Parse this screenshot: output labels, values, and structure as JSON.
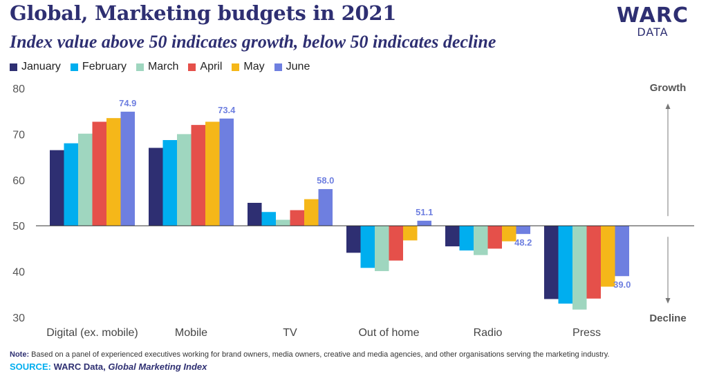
{
  "header": {
    "title": "Global, Marketing budgets in 2021",
    "subtitle": "Index value above 50 indicates growth, below 50 indicates decline",
    "logo_main": "WARC",
    "logo_sub": "DATA"
  },
  "footer": {
    "note_label": "Note:",
    "note_text": "Based on a panel of experienced executives working for brand owners, media owners, creative and media agencies, and other organisations serving the marketing industry.",
    "source_label": "SOURCE:",
    "source_org": "WARC Data,",
    "source_title": "Global Marketing Index"
  },
  "chart_data": {
    "type": "bar",
    "title": "Global, Marketing budgets in 2021",
    "baseline": 50,
    "ylim": [
      30,
      80
    ],
    "yticks": [
      30,
      40,
      50,
      60,
      70,
      80
    ],
    "categories": [
      "Digital (ex. mobile)",
      "Mobile",
      "TV",
      "Out of home",
      "Radio",
      "Press"
    ],
    "series": [
      {
        "name": "January",
        "color": "#2e2f72",
        "values": [
          66.5,
          67.0,
          55.0,
          44.1,
          45.5,
          34.0
        ]
      },
      {
        "name": "February",
        "color": "#00aeef",
        "values": [
          68.0,
          68.7,
          53.0,
          40.8,
          44.6,
          33.0
        ]
      },
      {
        "name": "March",
        "color": "#9fd6bf",
        "values": [
          70.1,
          70.0,
          51.3,
          40.1,
          43.6,
          31.7
        ]
      },
      {
        "name": "April",
        "color": "#e5504a",
        "values": [
          72.7,
          72.0,
          53.4,
          42.4,
          45.0,
          34.1
        ]
      },
      {
        "name": "May",
        "color": "#f5b719",
        "values": [
          73.5,
          72.7,
          55.8,
          46.8,
          46.6,
          36.7
        ]
      },
      {
        "name": "June",
        "color": "#6e7fe0",
        "values": [
          74.9,
          73.4,
          58.0,
          51.1,
          48.2,
          39.0
        ]
      }
    ],
    "labeled_series": "June",
    "data_labels": [
      "74.9",
      "73.4",
      "58.0",
      "51.1",
      "48.2",
      "39.0"
    ],
    "annotations": {
      "top": "Growth",
      "bottom": "Decline"
    }
  }
}
